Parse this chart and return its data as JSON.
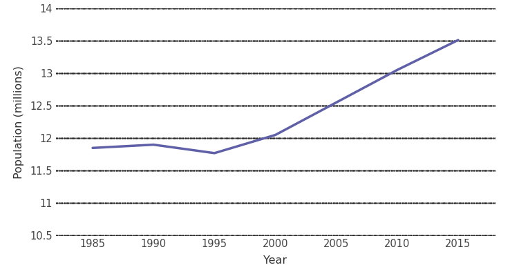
{
  "x": [
    1985,
    1990,
    1995,
    2000,
    2005,
    2010,
    2015
  ],
  "y": [
    11.85,
    11.9,
    11.77,
    12.05,
    12.55,
    13.05,
    13.51
  ],
  "line_color": "#6060a8",
  "line_width": 2.5,
  "xlabel": "Year",
  "ylabel": "Population (millions)",
  "xlim": [
    1982,
    2018
  ],
  "ylim": [
    10.5,
    14.0
  ],
  "yticks": [
    10.5,
    11,
    11.5,
    12,
    12.5,
    13,
    13.5,
    14
  ],
  "xticks": [
    1985,
    1990,
    1995,
    2000,
    2005,
    2010,
    2015
  ],
  "background_color": "#ffffff",
  "grid_color": "#222222",
  "tick_label_fontsize": 10.5,
  "axis_label_fontsize": 11.5
}
